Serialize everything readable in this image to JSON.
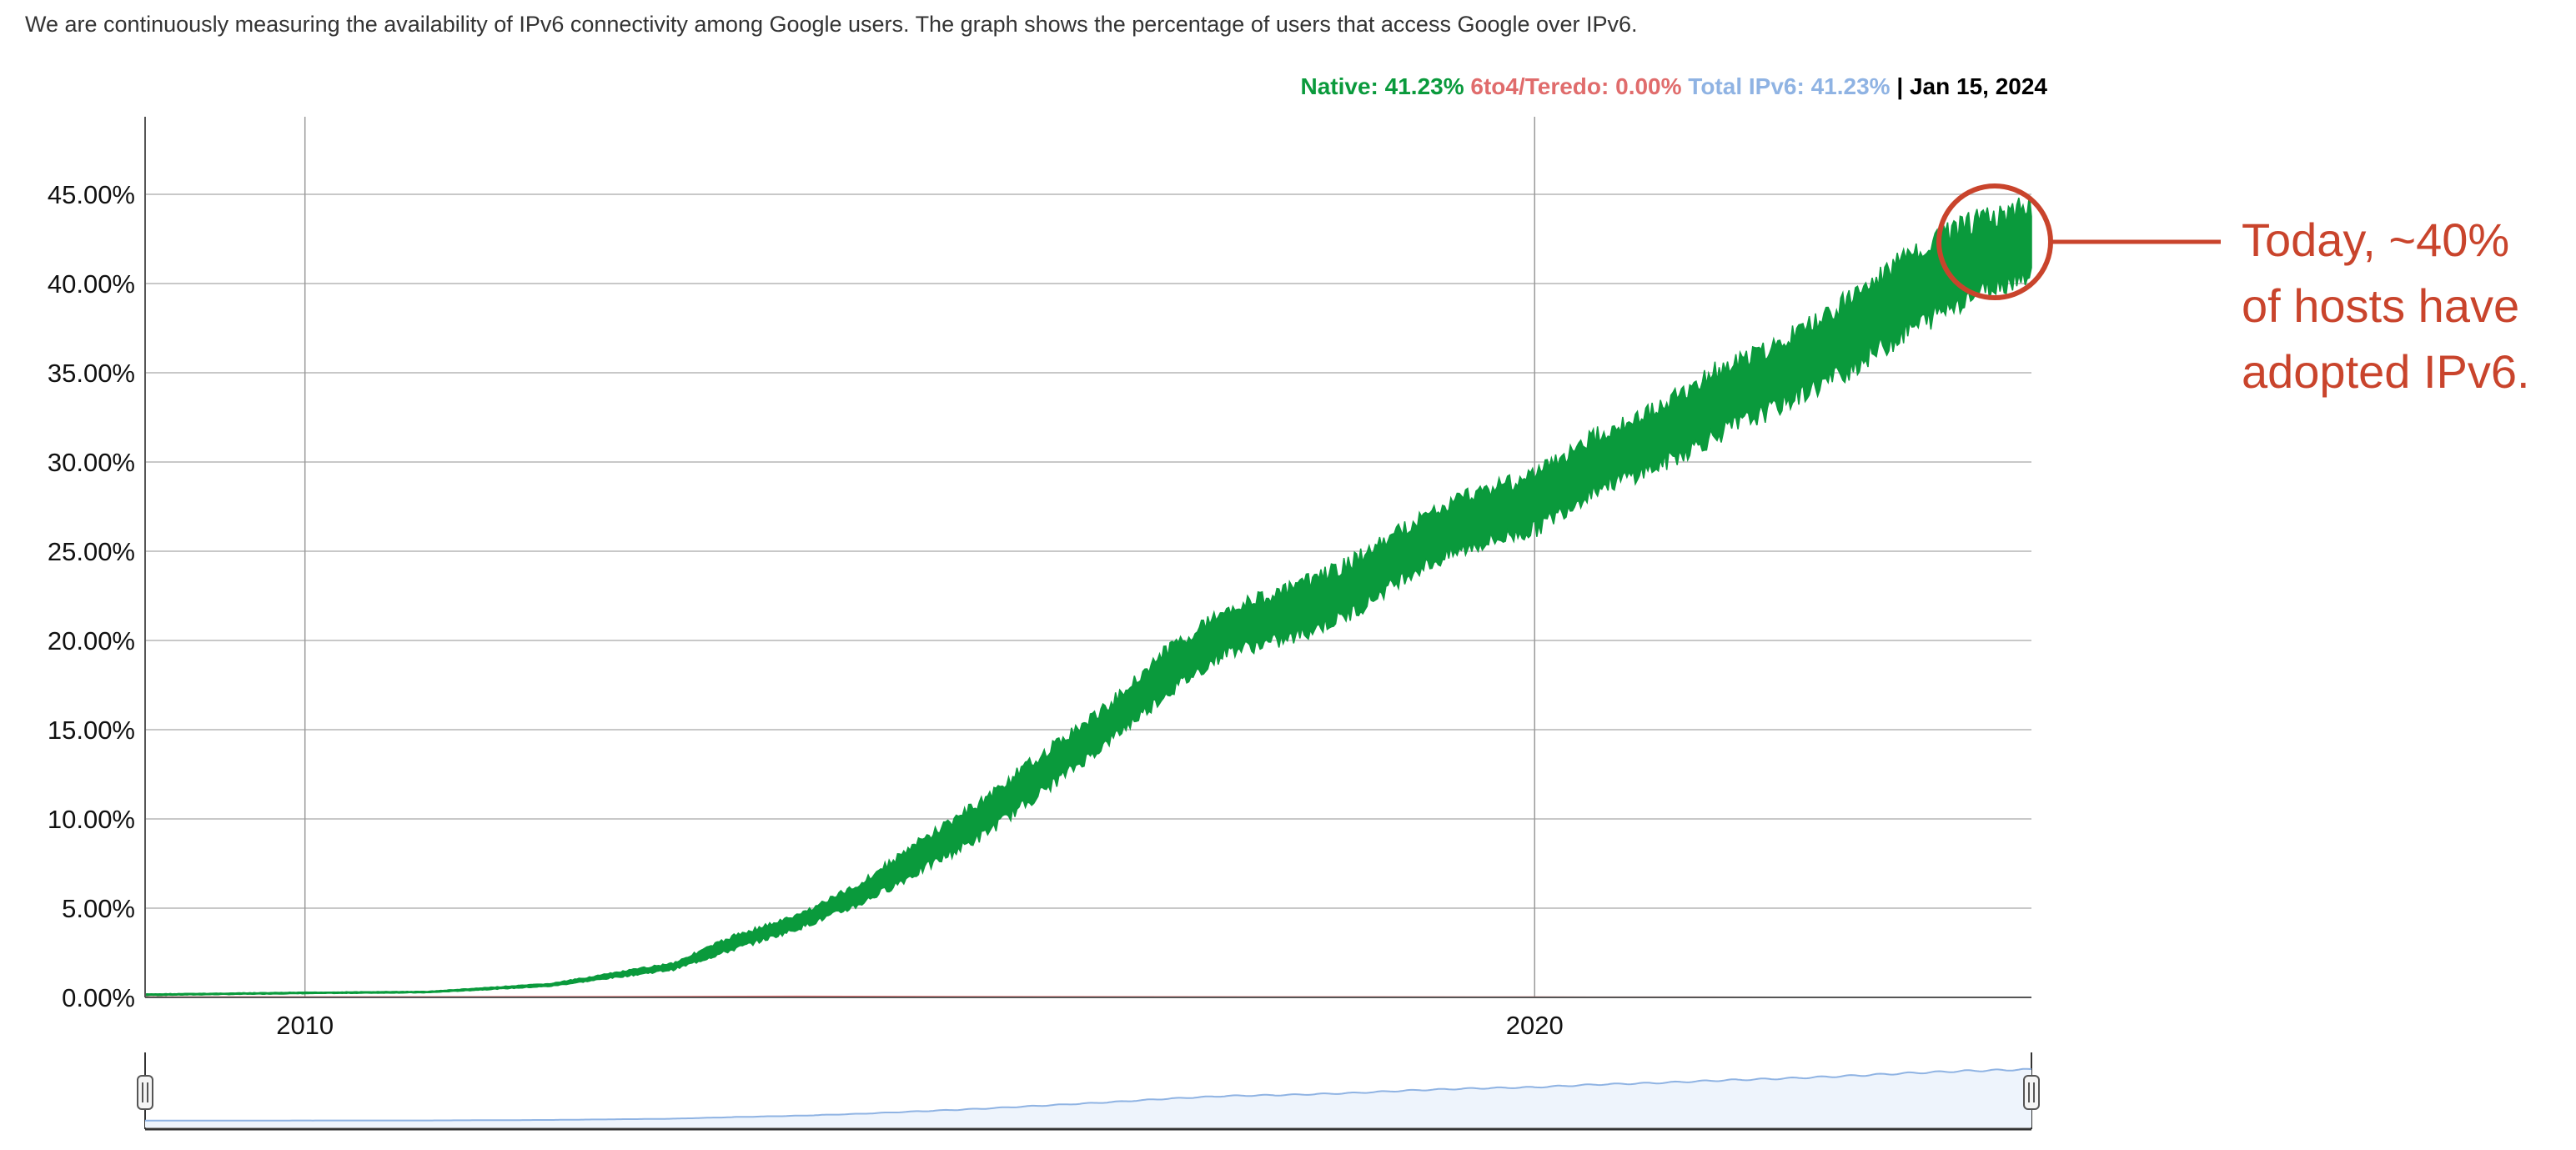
{
  "description": "We are continuously measuring the availability of IPv6 connectivity among Google users. The graph shows the percentage of users that access Google over IPv6.",
  "legend": {
    "native": "Native: 41.23%",
    "tunnel": "6to4/Teredo: 0.00%",
    "total": "Total IPv6: 41.23%",
    "separator": "|",
    "date": "Jan 15, 2024"
  },
  "colors": {
    "native": "#0a9a3c",
    "tunnel": "#e06c6c",
    "total": "#8fb3e3",
    "annotation": "#c9442c",
    "grid": "#c8c8c8",
    "navigator_fill": "#eef4fc"
  },
  "annotation": {
    "lines": [
      "Today, ~40%",
      "of hosts have",
      "adopted IPv6."
    ]
  },
  "chart_data": {
    "type": "area",
    "title": "",
    "xlabel": "",
    "ylabel": "",
    "x_ticks": [
      "2010",
      "2020"
    ],
    "y_ticks": [
      "0.00%",
      "5.00%",
      "10.00%",
      "15.00%",
      "20.00%",
      "25.00%",
      "30.00%",
      "35.00%",
      "40.00%",
      "45.00%"
    ],
    "xlim": [
      2008.7,
      2024.04
    ],
    "ylim": [
      0,
      49
    ],
    "grid": true,
    "legend_position": "top-right",
    "series": [
      {
        "name": "Native",
        "x": [
          2008.7,
          2010.0,
          2011.0,
          2012.0,
          2013.0,
          2013.5,
          2014.0,
          2014.5,
          2015.0,
          2015.5,
          2016.0,
          2016.5,
          2017.0,
          2017.5,
          2018.0,
          2018.5,
          2019.0,
          2019.5,
          2020.0,
          2020.5,
          2021.0,
          2021.5,
          2022.0,
          2022.5,
          2023.0,
          2023.5,
          2024.04
        ],
        "low": [
          0.1,
          0.2,
          0.25,
          0.6,
          1.5,
          2.6,
          3.7,
          5.0,
          6.8,
          8.7,
          11.2,
          13.8,
          16.6,
          19.0,
          19.6,
          21.0,
          23.4,
          24.8,
          25.7,
          28.0,
          29.2,
          31.0,
          32.6,
          34.3,
          36.5,
          38.5,
          40.0
        ],
        "high": [
          0.2,
          0.3,
          0.35,
          0.8,
          2.0,
          3.6,
          4.7,
          6.5,
          9.0,
          11.3,
          14.0,
          16.5,
          19.8,
          22.2,
          23.3,
          24.8,
          27.0,
          28.8,
          29.8,
          32.0,
          33.5,
          35.8,
          37.2,
          39.5,
          42.0,
          44.0,
          45.0
        ]
      },
      {
        "name": "6to4/Teredo",
        "x": [
          2008.7,
          2010.0,
          2012.0,
          2014.0,
          2016.0,
          2018.0,
          2020.0,
          2022.0,
          2024.04
        ],
        "values": [
          0.02,
          0.02,
          0.03,
          0.05,
          0.03,
          0.02,
          0.01,
          0.0,
          0.0
        ]
      }
    ]
  }
}
